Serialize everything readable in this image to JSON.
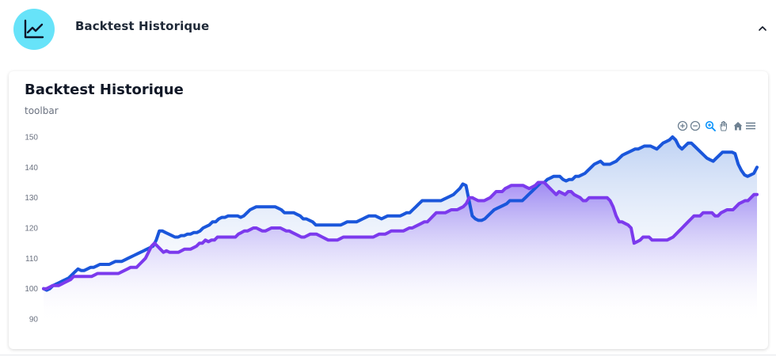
{
  "header": {
    "title": "Backtest Historique",
    "icon": "line-chart-icon",
    "collapse_icon": "chevron-up-icon",
    "icon_bg": "#67e3f9"
  },
  "card": {
    "title": "Backtest Historique",
    "subtitle": "toolbar"
  },
  "toolbar": {
    "icons": [
      "zoom-in-icon",
      "zoom-out-icon",
      "selection-zoom-icon",
      "pan-icon",
      "reset-home-icon",
      "menu-icon"
    ]
  },
  "chart_data": {
    "type": "area",
    "title": "",
    "xlabel": "",
    "ylabel": "",
    "ylim": [
      90,
      150
    ],
    "yticks": [
      150,
      140,
      130,
      120,
      110,
      100,
      90
    ],
    "grid": false,
    "legend": "none",
    "series": [
      {
        "color": "#1a56db",
        "fill_top": "#a8c2ef",
        "fill_bottom": "#ffffff",
        "values": [
          100,
          99.5,
          100,
          101,
          101.5,
          102,
          102.5,
          103,
          103.5,
          104.5,
          105.5,
          106.5,
          106,
          106,
          106.5,
          107,
          107,
          107.5,
          108,
          108,
          108,
          108,
          108.5,
          109,
          109,
          109,
          109.5,
          110,
          110.5,
          111,
          111.5,
          112,
          112.5,
          113,
          113.5,
          114,
          116,
          119,
          119,
          118.5,
          118,
          117.5,
          117,
          117,
          117.5,
          117.5,
          118,
          118,
          118.5,
          118.5,
          119,
          120,
          120.5,
          121,
          122,
          122,
          123,
          123.5,
          123.5,
          124,
          124,
          124,
          124,
          123.5,
          124,
          125,
          126,
          126.5,
          127,
          127,
          127,
          127,
          127,
          127,
          127,
          126.5,
          126,
          125,
          125,
          125,
          125,
          124.5,
          124,
          123,
          123,
          122.5,
          122,
          121,
          121,
          121,
          121,
          121,
          121,
          121,
          121,
          121,
          121.5,
          122,
          122,
          122,
          122,
          122.5,
          123,
          123.5,
          124,
          124,
          124,
          123.5,
          123,
          123.5,
          124,
          124,
          124,
          124,
          124,
          124.5,
          125,
          125,
          126,
          127,
          128,
          129,
          129,
          129,
          129,
          129,
          129,
          129,
          129.5,
          130,
          130.5,
          131,
          132,
          133,
          134.5,
          134,
          129,
          124,
          123,
          122.5,
          122.5,
          123,
          124,
          125,
          126,
          126.5,
          127,
          127.5,
          128,
          129,
          129,
          129,
          129,
          129,
          130,
          131,
          132,
          133,
          134,
          135,
          135,
          136,
          136.5,
          137,
          137,
          137,
          136,
          135.5,
          136,
          136,
          137,
          137,
          137.5,
          138,
          139,
          140,
          141,
          141.5,
          142,
          141,
          141,
          141,
          141.5,
          142,
          143,
          144,
          144.5,
          145,
          145.5,
          146,
          146,
          146.5,
          147,
          147,
          147,
          146.5,
          146,
          147,
          148,
          148.5,
          149,
          150,
          149,
          147,
          146,
          147,
          148,
          148,
          147,
          146,
          145,
          144,
          143,
          142.5,
          142,
          143,
          144,
          145,
          145,
          145,
          145,
          144.5,
          141,
          139,
          137.5,
          137,
          137.5,
          138,
          140
        ]
      },
      {
        "color": "#7c3aed",
        "fill_top": "#8b6cf0",
        "fill_bottom": "#ffffff",
        "values": [
          100,
          100,
          100.5,
          101,
          101,
          101,
          101.5,
          102,
          102.5,
          103,
          104,
          104,
          104,
          104,
          104,
          104,
          104,
          104.5,
          105,
          105,
          105,
          105,
          105,
          105,
          105,
          105,
          105.5,
          106,
          106.5,
          107,
          107,
          107,
          108,
          109,
          110,
          112,
          114,
          115,
          114,
          113,
          112,
          112.5,
          112,
          112,
          112,
          112,
          112.5,
          113,
          113,
          113,
          113.5,
          114,
          115,
          115,
          116,
          115.5,
          116,
          116,
          117,
          117,
          117,
          117,
          117,
          117,
          117,
          118,
          118.5,
          119,
          119,
          119.5,
          120,
          120,
          119.5,
          119,
          119,
          119.5,
          120,
          120,
          120,
          120,
          119.5,
          119,
          119,
          118.5,
          118,
          117.5,
          117,
          117,
          117.5,
          118,
          118,
          118,
          117.5,
          117,
          116.5,
          116,
          116,
          116,
          116,
          116.5,
          117,
          117,
          117,
          117,
          117,
          117,
          117,
          117,
          117,
          117,
          117,
          117.5,
          118,
          118,
          118,
          118.5,
          119,
          119,
          119,
          119,
          119,
          119.5,
          120,
          120,
          120.5,
          121,
          121.5,
          122,
          122,
          123,
          124,
          125,
          125,
          125,
          125,
          125.5,
          126,
          126,
          126,
          126.5,
          127,
          128,
          130,
          130,
          129.5,
          129,
          129,
          129,
          129.5,
          130,
          131,
          132,
          132,
          132,
          133,
          133.5,
          134,
          134,
          134,
          134,
          134,
          133.5,
          133,
          133.5,
          134,
          135,
          135,
          135,
          134,
          133,
          132,
          131,
          132,
          131.5,
          131,
          132,
          132,
          131,
          130.5,
          130,
          129,
          129,
          130,
          130,
          130,
          130,
          130,
          130,
          130,
          129,
          127,
          124,
          122,
          122,
          121.5,
          121,
          120,
          115,
          115.5,
          116,
          117,
          117,
          117,
          116,
          116,
          116,
          116,
          116,
          116,
          116.5,
          117,
          118,
          119,
          120,
          121,
          122,
          123,
          124,
          124,
          124,
          125,
          125,
          125,
          125,
          124,
          124,
          125,
          125.5,
          126,
          126,
          126,
          127,
          128,
          128.5,
          129,
          129,
          130,
          131,
          131
        ]
      }
    ]
  }
}
